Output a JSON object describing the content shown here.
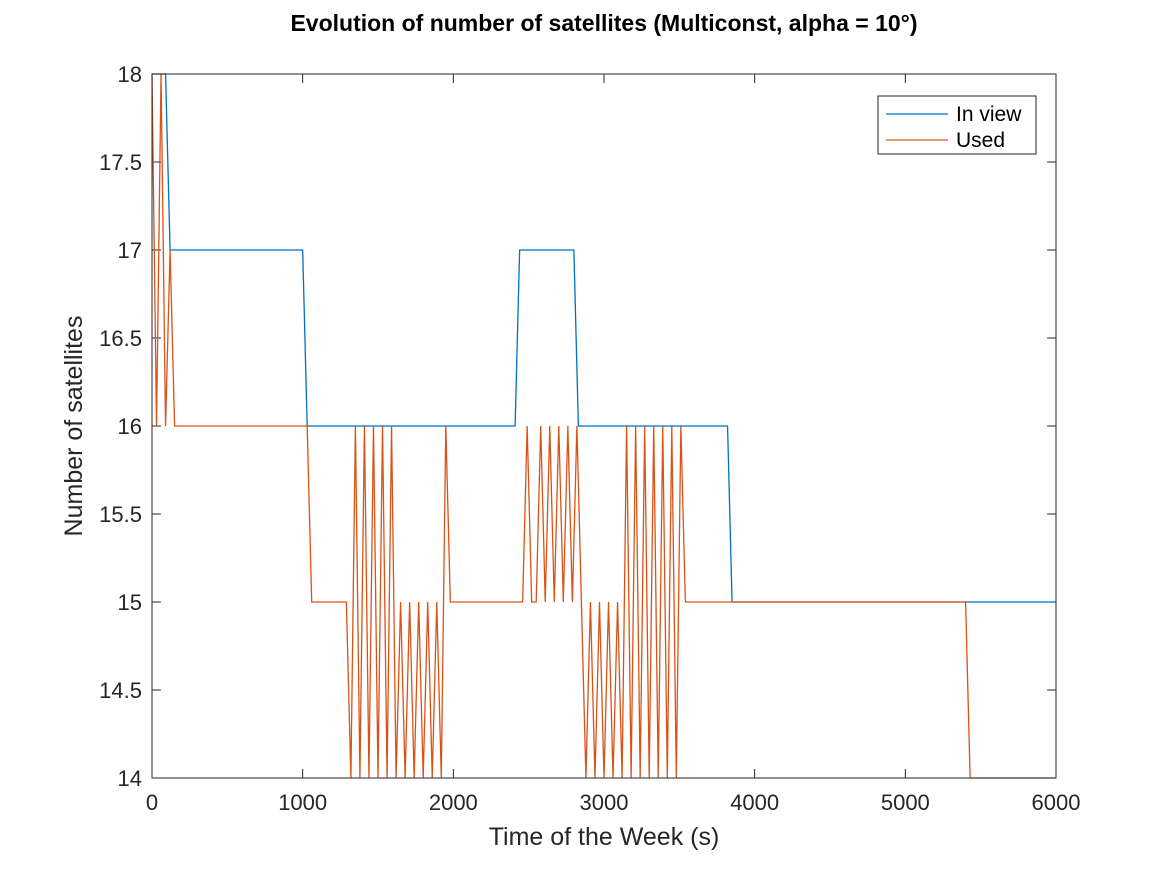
{
  "chart_data": {
    "type": "line",
    "title": "Evolution of number of satellites (Multiconst, alpha = 10°)",
    "xlabel": "Time of the Week (s)",
    "ylabel": "Number of satellites",
    "xlim": [
      0,
      6000
    ],
    "ylim": [
      14,
      18
    ],
    "xticks": [
      0,
      1000,
      2000,
      3000,
      4000,
      5000,
      6000
    ],
    "yticks": [
      14,
      14.5,
      15,
      15.5,
      16,
      16.5,
      17,
      17.5,
      18
    ],
    "grid": false,
    "legend_position": "top-right",
    "series": [
      {
        "name": "In view",
        "color": "#0072BD",
        "x": [
          0,
          30,
          60,
          90,
          120,
          1000,
          1030,
          2410,
          2440,
          2800,
          2830,
          3820,
          3850,
          6000
        ],
        "y": [
          18,
          18,
          18,
          18,
          17,
          17,
          16,
          16,
          17,
          17,
          16,
          16,
          15,
          15
        ]
      },
      {
        "name": "Used",
        "color": "#D95319",
        "x": [
          0,
          30,
          60,
          90,
          120,
          150,
          1030,
          1060,
          1290,
          1320,
          1350,
          1380,
          1410,
          1440,
          1470,
          1500,
          1530,
          1560,
          1590,
          1620,
          1650,
          1680,
          1710,
          1740,
          1770,
          1800,
          1830,
          1860,
          1890,
          1920,
          1950,
          1980,
          2460,
          2490,
          2520,
          2550,
          2580,
          2610,
          2640,
          2670,
          2700,
          2730,
          2760,
          2790,
          2820,
          2850,
          2880,
          2910,
          2940,
          2970,
          3000,
          3030,
          3060,
          3090,
          3120,
          3150,
          3180,
          3210,
          3240,
          3270,
          3300,
          3330,
          3360,
          3390,
          3420,
          3450,
          3480,
          3510,
          3540,
          5400,
          5430,
          6000
        ],
        "y": [
          18,
          16,
          18,
          16,
          17,
          16,
          16,
          15,
          15,
          14,
          16,
          14,
          16,
          14,
          16,
          14,
          16,
          14,
          16,
          14,
          15,
          14,
          15,
          14,
          15,
          14,
          15,
          14,
          15,
          14,
          16,
          15,
          15,
          16,
          15,
          15,
          16,
          15,
          16,
          15,
          16,
          15,
          16,
          15,
          16,
          15,
          14,
          15,
          14,
          15,
          14,
          15,
          14,
          15,
          14,
          16,
          14,
          16,
          14,
          16,
          14,
          16,
          14,
          16,
          14,
          16,
          14,
          16,
          15,
          15,
          14,
          14
        ]
      }
    ]
  }
}
